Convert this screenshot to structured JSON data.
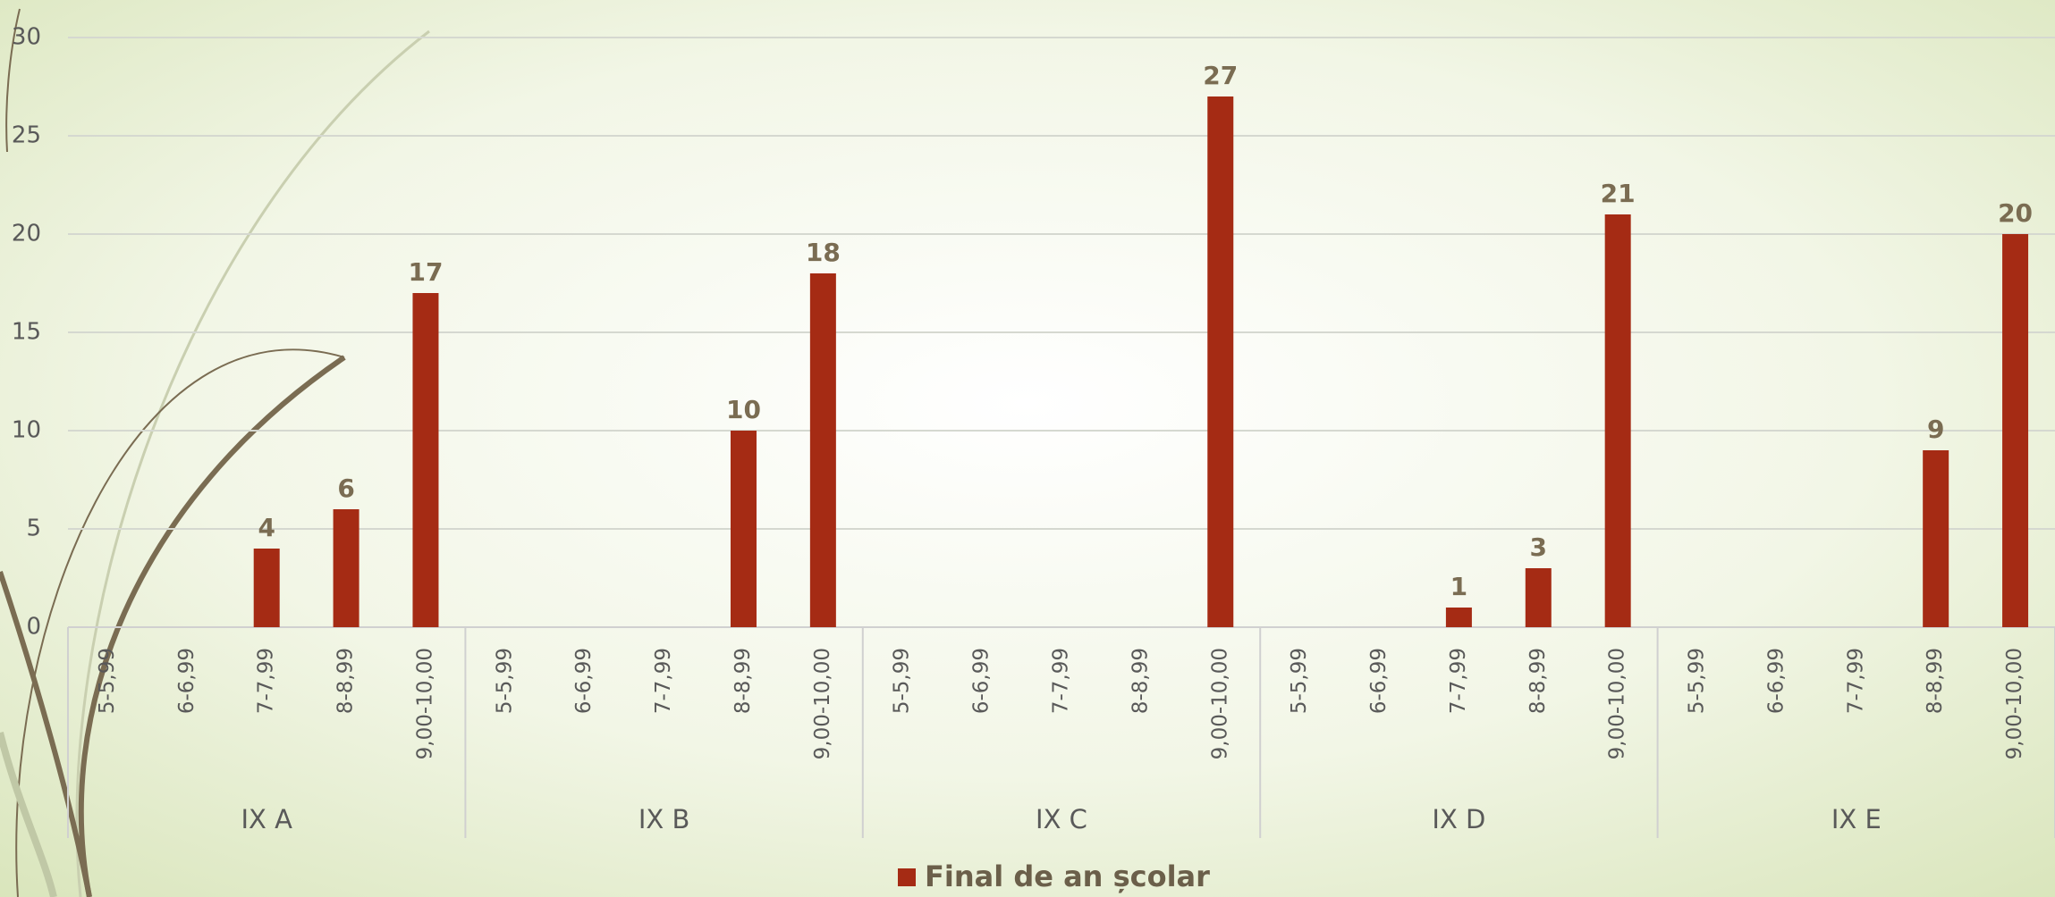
{
  "chart_data": {
    "type": "bar",
    "groups": [
      "IX A",
      "IX B",
      "IX C",
      "IX D",
      "IX E"
    ],
    "categories": [
      "5-5,99",
      "6-6,99",
      "7-7,99",
      "8-8,99",
      "9,00-10,00",
      "5-5,99",
      "6-6,99",
      "7-7,99",
      "8-8,99",
      "9,00-10,00",
      "5-5,99",
      "6-6,99",
      "7-7,99",
      "8-8,99",
      "9,00-10,00",
      "5-5,99",
      "6-6,99",
      "7-7,99",
      "8-8,99",
      "9,00-10,00",
      "5-5,99",
      "6-6,99",
      "7-7,99",
      "8-8,99",
      "9,00-10,00"
    ],
    "series": [
      {
        "name": "Final de an școlar",
        "color": "#a52b14",
        "values": [
          null,
          null,
          4,
          6,
          17,
          null,
          null,
          null,
          10,
          18,
          null,
          null,
          null,
          null,
          27,
          null,
          null,
          1,
          3,
          21,
          null,
          null,
          null,
          9,
          20
        ]
      }
    ],
    "ylim": [
      0,
      30
    ],
    "yticks": [
      0,
      5,
      10,
      15,
      20,
      25,
      30
    ],
    "grid": true,
    "legend": "bottom"
  }
}
